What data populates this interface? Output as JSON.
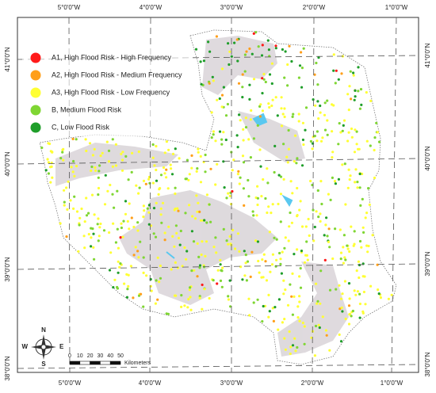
{
  "legend": {
    "items": [
      {
        "label": "A1, High Flood Risk - High Frequency",
        "color": "#ff1a1a"
      },
      {
        "label": "A2, High Flood Risk - Medium Frequency",
        "color": "#ff9f1a"
      },
      {
        "label": "A3, High Flood Risk - Low Frequency",
        "color": "#ffff33"
      },
      {
        "label": "B, Medium Flood Risk",
        "color": "#7fd633"
      },
      {
        "label": "C, Low Flood Risk",
        "color": "#1f9e2a"
      }
    ]
  },
  "graticule": {
    "top": [
      "5°0'0\"W",
      "4°0'0\"W",
      "3°0'0\"W",
      "2°0'0\"W",
      "1°0'0\"W"
    ],
    "bottom": [
      "5°0'0\"W",
      "4°0'0\"W",
      "3°0'0\"W",
      "2°0'0\"W",
      "1°0'0\"W"
    ],
    "left": [
      "41°0'0\"N",
      "40°0'0\"N",
      "39°0'0\"N",
      "38°0'0\"N"
    ],
    "right": [
      "41°0'0\"N",
      "40°0'0\"N",
      "39°0'0\"N",
      "38°0'0\"N"
    ]
  },
  "scale_bar": {
    "ticks": [
      0,
      10,
      20,
      30,
      40,
      50
    ],
    "unit": "Kilometers"
  },
  "compass": {
    "n": "N",
    "s": "S",
    "e": "E",
    "w": "W"
  }
}
